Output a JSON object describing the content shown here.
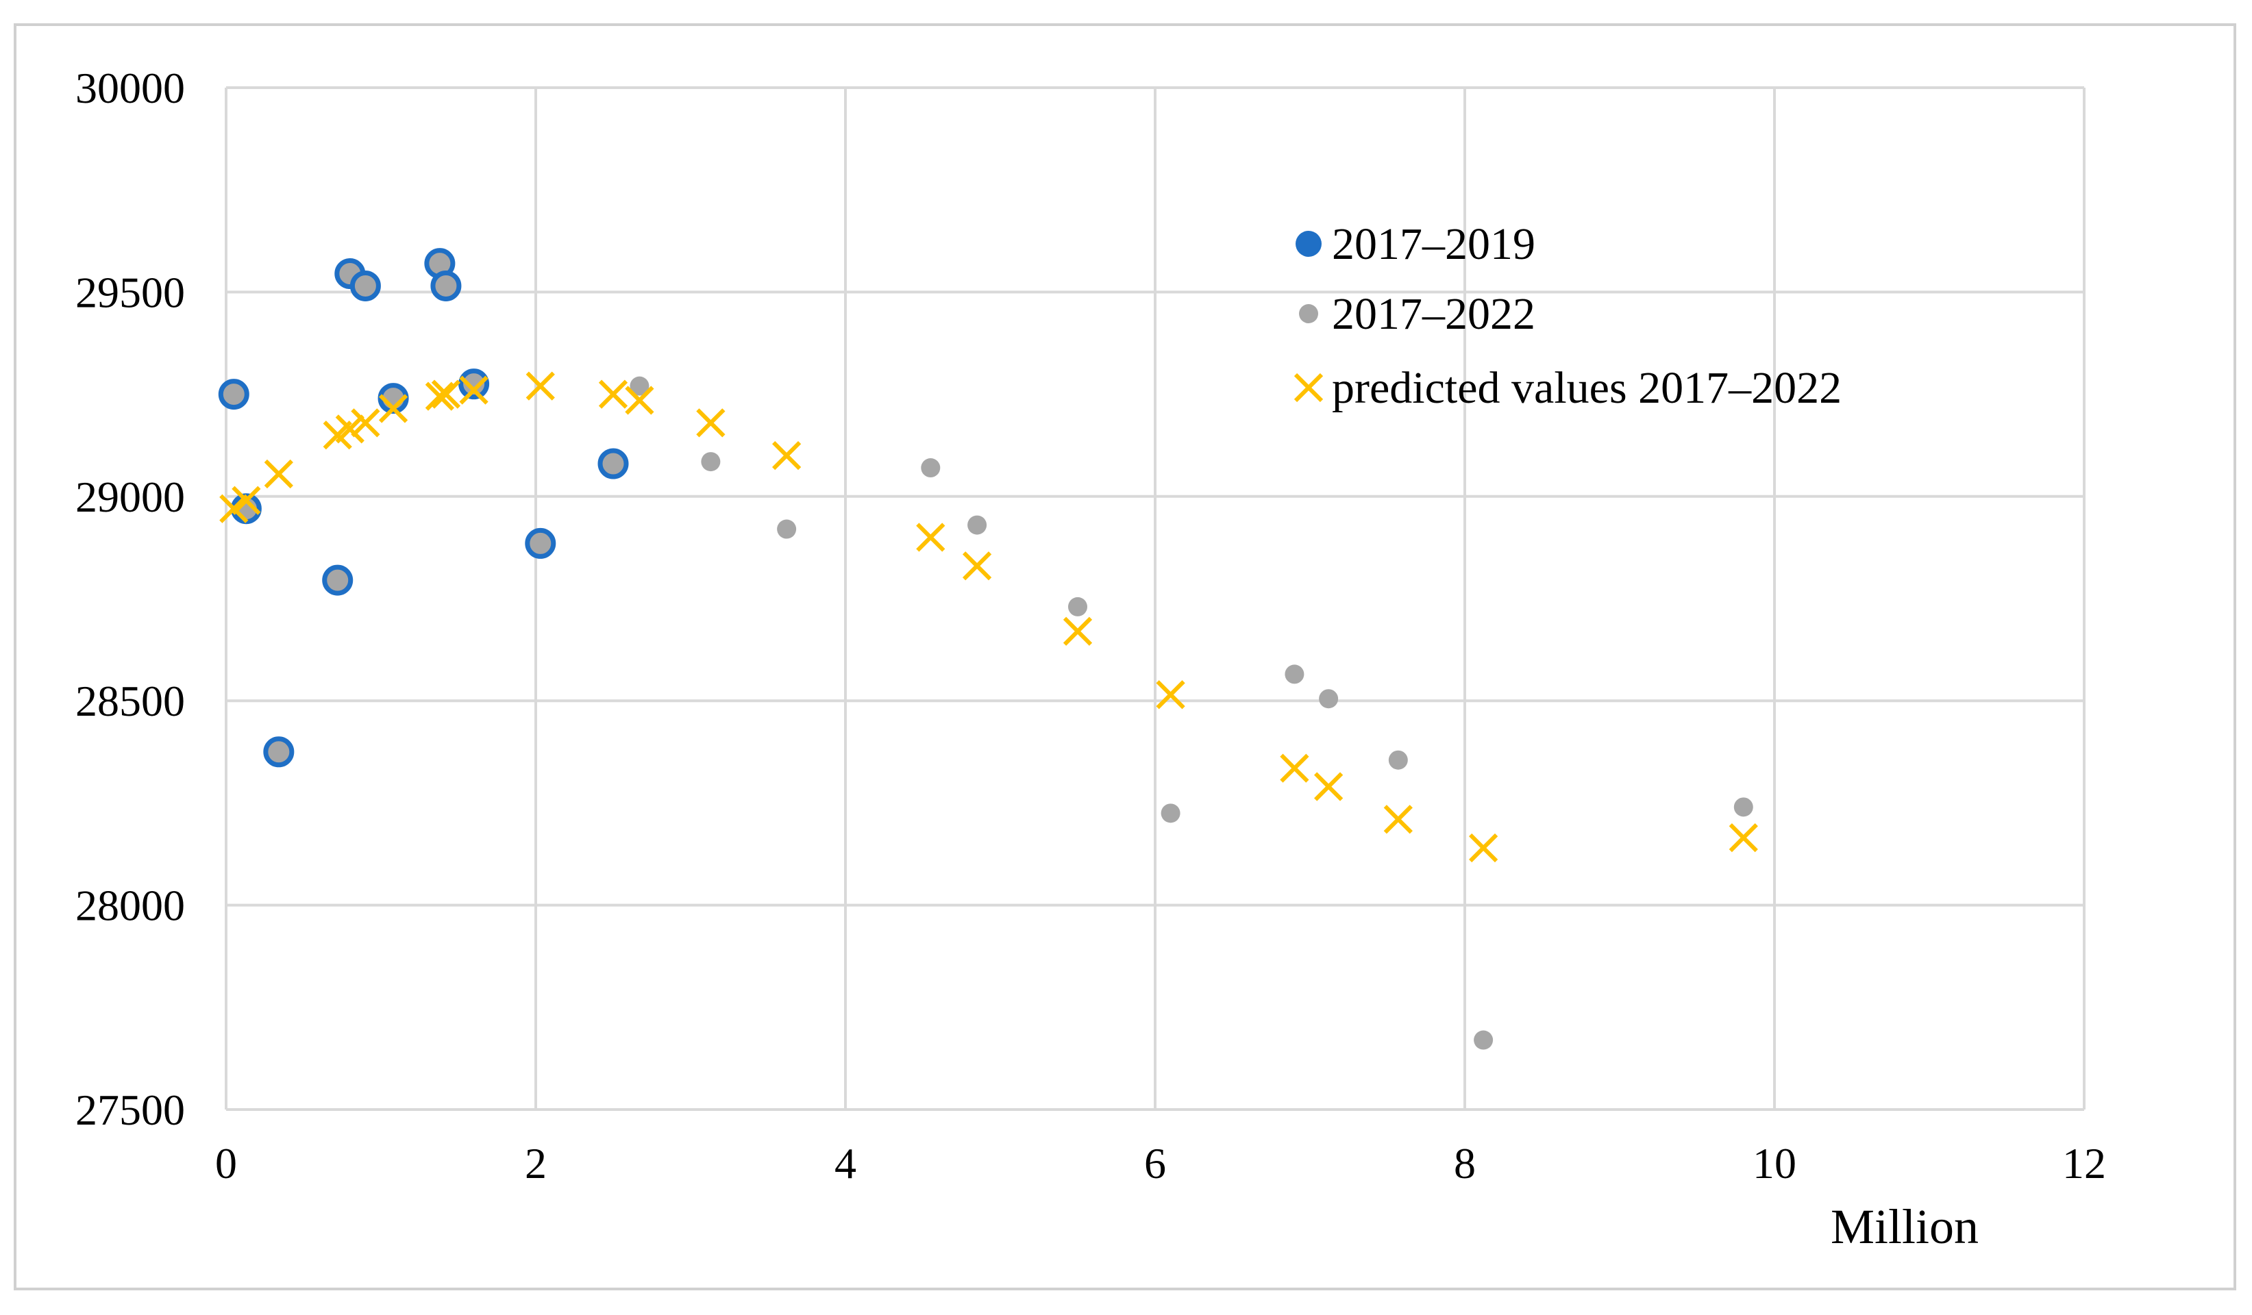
{
  "chart_data": {
    "type": "scatter",
    "title": "",
    "xlabel": "Million",
    "ylabel": "",
    "xlim": [
      0,
      12
    ],
    "ylim": [
      27500,
      30000
    ],
    "x_ticks": [
      "0",
      "2",
      "4",
      "6",
      "8",
      "10",
      "12"
    ],
    "y_ticks": [
      "27500",
      "28000",
      "28500",
      "29000",
      "29500",
      "30000"
    ],
    "grid": true,
    "legend_position": "top-right",
    "colors": {
      "blue": "#1f6fc5",
      "gray": "#a6a6a6",
      "gold": "#ffc000",
      "grid": "#d9d9d9",
      "frame": "#d0d0d0"
    },
    "series": [
      {
        "name": "2017–2019",
        "marker": "circle",
        "points": [
          [
            0.05,
            29250
          ],
          [
            0.13,
            28970
          ],
          [
            0.34,
            28375
          ],
          [
            0.72,
            28795
          ],
          [
            0.8,
            29545
          ],
          [
            0.9,
            29515
          ],
          [
            1.08,
            29240
          ],
          [
            1.38,
            29570
          ],
          [
            1.42,
            29515
          ],
          [
            1.6,
            29275
          ],
          [
            2.03,
            28885
          ],
          [
            2.5,
            29080
          ]
        ]
      },
      {
        "name": "2017–2022",
        "marker": "dot",
        "points": [
          [
            0.05,
            29250
          ],
          [
            0.13,
            28970
          ],
          [
            0.34,
            28375
          ],
          [
            0.72,
            28795
          ],
          [
            0.8,
            29545
          ],
          [
            0.9,
            29515
          ],
          [
            1.08,
            29240
          ],
          [
            1.38,
            29570
          ],
          [
            1.42,
            29515
          ],
          [
            1.6,
            29275
          ],
          [
            2.03,
            28885
          ],
          [
            2.5,
            29080
          ],
          [
            2.67,
            29270
          ],
          [
            3.13,
            29085
          ],
          [
            3.62,
            28920
          ],
          [
            4.55,
            29070
          ],
          [
            4.85,
            28930
          ],
          [
            5.5,
            28730
          ],
          [
            6.1,
            28225
          ],
          [
            6.9,
            28565
          ],
          [
            7.12,
            28505
          ],
          [
            7.57,
            28355
          ],
          [
            8.12,
            27670
          ],
          [
            9.8,
            28240
          ]
        ]
      },
      {
        "name": "predicted values 2017–2022",
        "marker": "x",
        "points": [
          [
            0.05,
            28970
          ],
          [
            0.13,
            28990
          ],
          [
            0.34,
            29055
          ],
          [
            0.72,
            29150
          ],
          [
            0.8,
            29165
          ],
          [
            0.9,
            29180
          ],
          [
            1.08,
            29215
          ],
          [
            1.38,
            29245
          ],
          [
            1.42,
            29250
          ],
          [
            1.6,
            29260
          ],
          [
            2.03,
            29270
          ],
          [
            2.5,
            29250
          ],
          [
            2.67,
            29235
          ],
          [
            3.13,
            29180
          ],
          [
            3.62,
            29100
          ],
          [
            4.55,
            28900
          ],
          [
            4.85,
            28830
          ],
          [
            5.5,
            28670
          ],
          [
            6.1,
            28515
          ],
          [
            6.9,
            28335
          ],
          [
            7.12,
            28290
          ],
          [
            7.57,
            28210
          ],
          [
            8.12,
            28140
          ],
          [
            9.8,
            28165
          ]
        ]
      }
    ]
  }
}
